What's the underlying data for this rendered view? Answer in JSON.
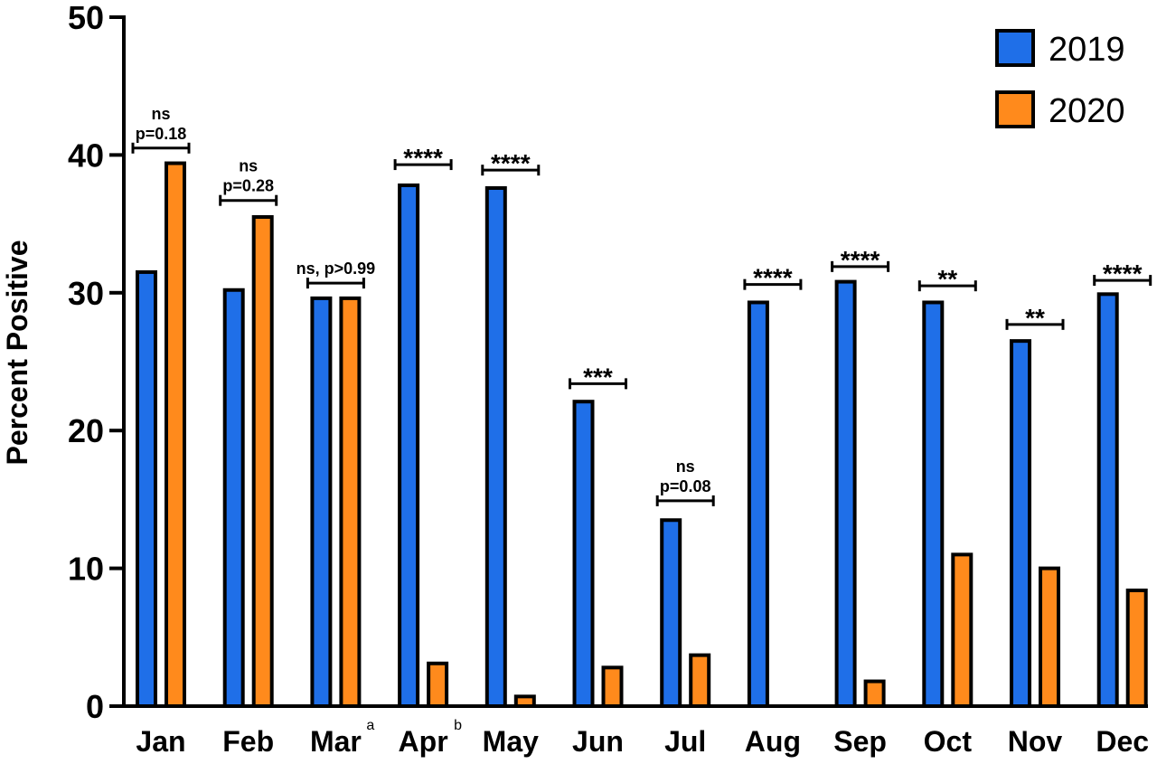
{
  "chart_data": {
    "type": "bar",
    "title": "",
    "xlabel": "",
    "ylabel": "Percent Positive",
    "ylim": [
      0,
      50
    ],
    "yticks": [
      0,
      10,
      20,
      30,
      40,
      50
    ],
    "grid": false,
    "legend_position": "top-right",
    "categories": [
      {
        "label": "Jan",
        "sup": ""
      },
      {
        "label": "Feb",
        "sup": ""
      },
      {
        "label": "Mar",
        "sup": "a"
      },
      {
        "label": "Apr",
        "sup": "b"
      },
      {
        "label": "May",
        "sup": ""
      },
      {
        "label": "Jun",
        "sup": ""
      },
      {
        "label": "Jul",
        "sup": ""
      },
      {
        "label": "Aug",
        "sup": ""
      },
      {
        "label": "Sep",
        "sup": ""
      },
      {
        "label": "Oct",
        "sup": ""
      },
      {
        "label": "Nov",
        "sup": ""
      },
      {
        "label": "Dec",
        "sup": ""
      }
    ],
    "series": [
      {
        "name": "2019",
        "color": "#1f6fe8",
        "values": [
          31.5,
          30.2,
          29.6,
          37.8,
          37.6,
          22.1,
          13.5,
          29.3,
          30.8,
          29.3,
          26.5,
          29.9
        ]
      },
      {
        "name": "2020",
        "color": "#ff8a1c",
        "values": [
          39.4,
          35.5,
          29.6,
          3.1,
          0.7,
          2.8,
          3.7,
          0,
          1.8,
          11.0,
          10.0,
          8.4
        ]
      }
    ],
    "annotations": [
      {
        "category": "Jan",
        "lines": [
          "ns",
          "p=0.18"
        ],
        "bracket_y": 40.5
      },
      {
        "category": "Feb",
        "lines": [
          "ns",
          "p=0.28"
        ],
        "bracket_y": 36.7
      },
      {
        "category": "Mar",
        "lines": [
          "ns, p>0.99"
        ],
        "bracket_y": 30.7
      },
      {
        "category": "Apr",
        "lines": [
          "****"
        ],
        "bracket_y": 39.3
      },
      {
        "category": "May",
        "lines": [
          "****"
        ],
        "bracket_y": 38.9
      },
      {
        "category": "Jun",
        "lines": [
          "***"
        ],
        "bracket_y": 23.4
      },
      {
        "category": "Jul",
        "lines": [
          "ns",
          "p=0.08"
        ],
        "bracket_y": 14.9
      },
      {
        "category": "Aug",
        "lines": [
          "****"
        ],
        "bracket_y": 30.6
      },
      {
        "category": "Sep",
        "lines": [
          "****"
        ],
        "bracket_y": 31.9
      },
      {
        "category": "Oct",
        "lines": [
          "**"
        ],
        "bracket_y": 30.5
      },
      {
        "category": "Nov",
        "lines": [
          "**"
        ],
        "bracket_y": 27.7
      },
      {
        "category": "Dec",
        "lines": [
          "****"
        ],
        "bracket_y": 30.9
      }
    ]
  }
}
